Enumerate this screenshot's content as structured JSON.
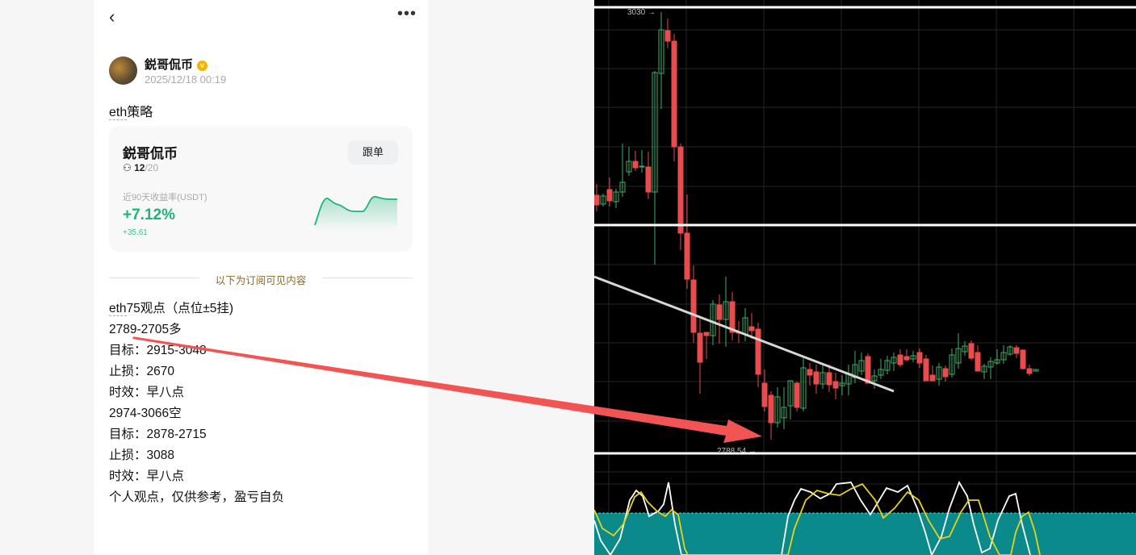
{
  "header": {
    "back_icon": "chevron-left-icon",
    "more_icon": "ellipsis-icon",
    "more_label": "•••",
    "back_label": "‹"
  },
  "author": {
    "name": "鋭哥侃币",
    "verified_badge": "v",
    "timestamp": "2025/12/18 00:19"
  },
  "post": {
    "title_u": "eth",
    "title_rest": "策略",
    "card": {
      "name": "鋭哥侃币",
      "follow_label": "跟单",
      "followers_current": "12",
      "followers_max": "/20",
      "return_label": "近90天收益率(USDT)",
      "return_pct": "+7.12%",
      "return_abs": "+35.61",
      "color": "#1fb37a"
    },
    "divider_text": "以下为订阅可见内容",
    "lines": [
      {
        "u": "eth",
        "t": "75观点（点位±5挂)"
      },
      {
        "u": "",
        "t": "2789-2705多"
      },
      {
        "u": "",
        "t": "目标：2915-3048"
      },
      {
        "u": "",
        "t": "止损：2670"
      },
      {
        "u": "",
        "t": "时效：早八点"
      },
      {
        "u": "",
        "t": " "
      },
      {
        "u": "",
        "t": "2974-3066空"
      },
      {
        "u": "",
        "t": "目标：2878-2715"
      },
      {
        "u": "",
        "t": "止损：3088"
      },
      {
        "u": "",
        "t": "时效：早八点"
      },
      {
        "u": "",
        "t": " "
      },
      {
        "u": "",
        "t": "个人观点，仅供参考，盈亏自负"
      }
    ]
  },
  "chart": {
    "high_label": "3030 →",
    "low_label": "2788.54 →",
    "up_color": "#3fae6a",
    "down_color": "#e84c4c",
    "oscillator_fill": "#0a8a8a",
    "arrow_color": "#f25454"
  }
}
